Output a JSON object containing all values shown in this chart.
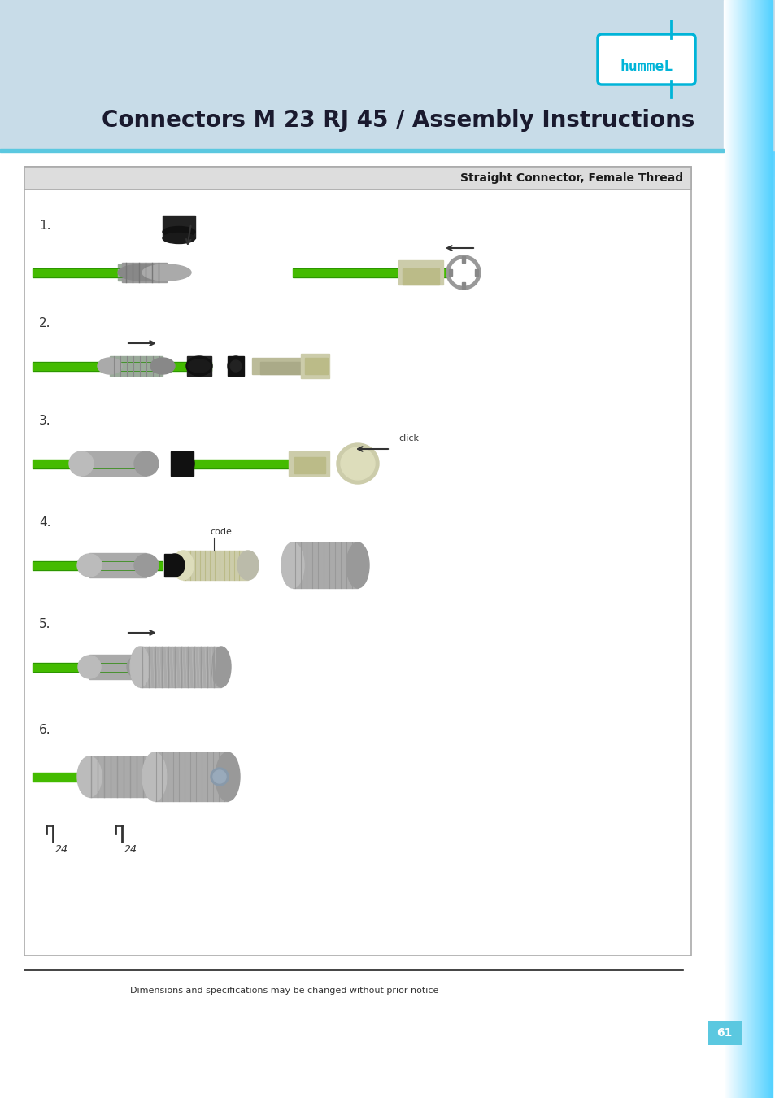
{
  "page_bg": "#c8dce8",
  "header_bg": "#c8dce8",
  "content_bg": "#ffffff",
  "right_sidebar_color": "#4dcfea",
  "title": "Connectors M 23 RJ 45 / Assembly Instructions",
  "title_color": "#1a1a2e",
  "title_fontsize": 20,
  "hummel_logo_color": "#00b4d8",
  "box_header_text": "Straight Connector, Female Thread",
  "box_header_bg": "#e8e8e8",
  "box_header_text_color": "#1a1a1a",
  "step_labels": [
    "1.",
    "2.",
    "3.",
    "4.",
    "5.",
    "6."
  ],
  "step_label_color": "#333333",
  "green_cable_color": "#44bb00",
  "connector_gray": "#9aaa9a",
  "connector_dark": "#444444",
  "connector_light": "#ccccbb",
  "footer_text": "Dimensions and specifications may be changed without prior notice",
  "footer_page": "61",
  "footer_color": "#333333",
  "footer_page_bg": "#4dcfea",
  "note_click": "click",
  "note_code": "code",
  "torque_label": "24"
}
